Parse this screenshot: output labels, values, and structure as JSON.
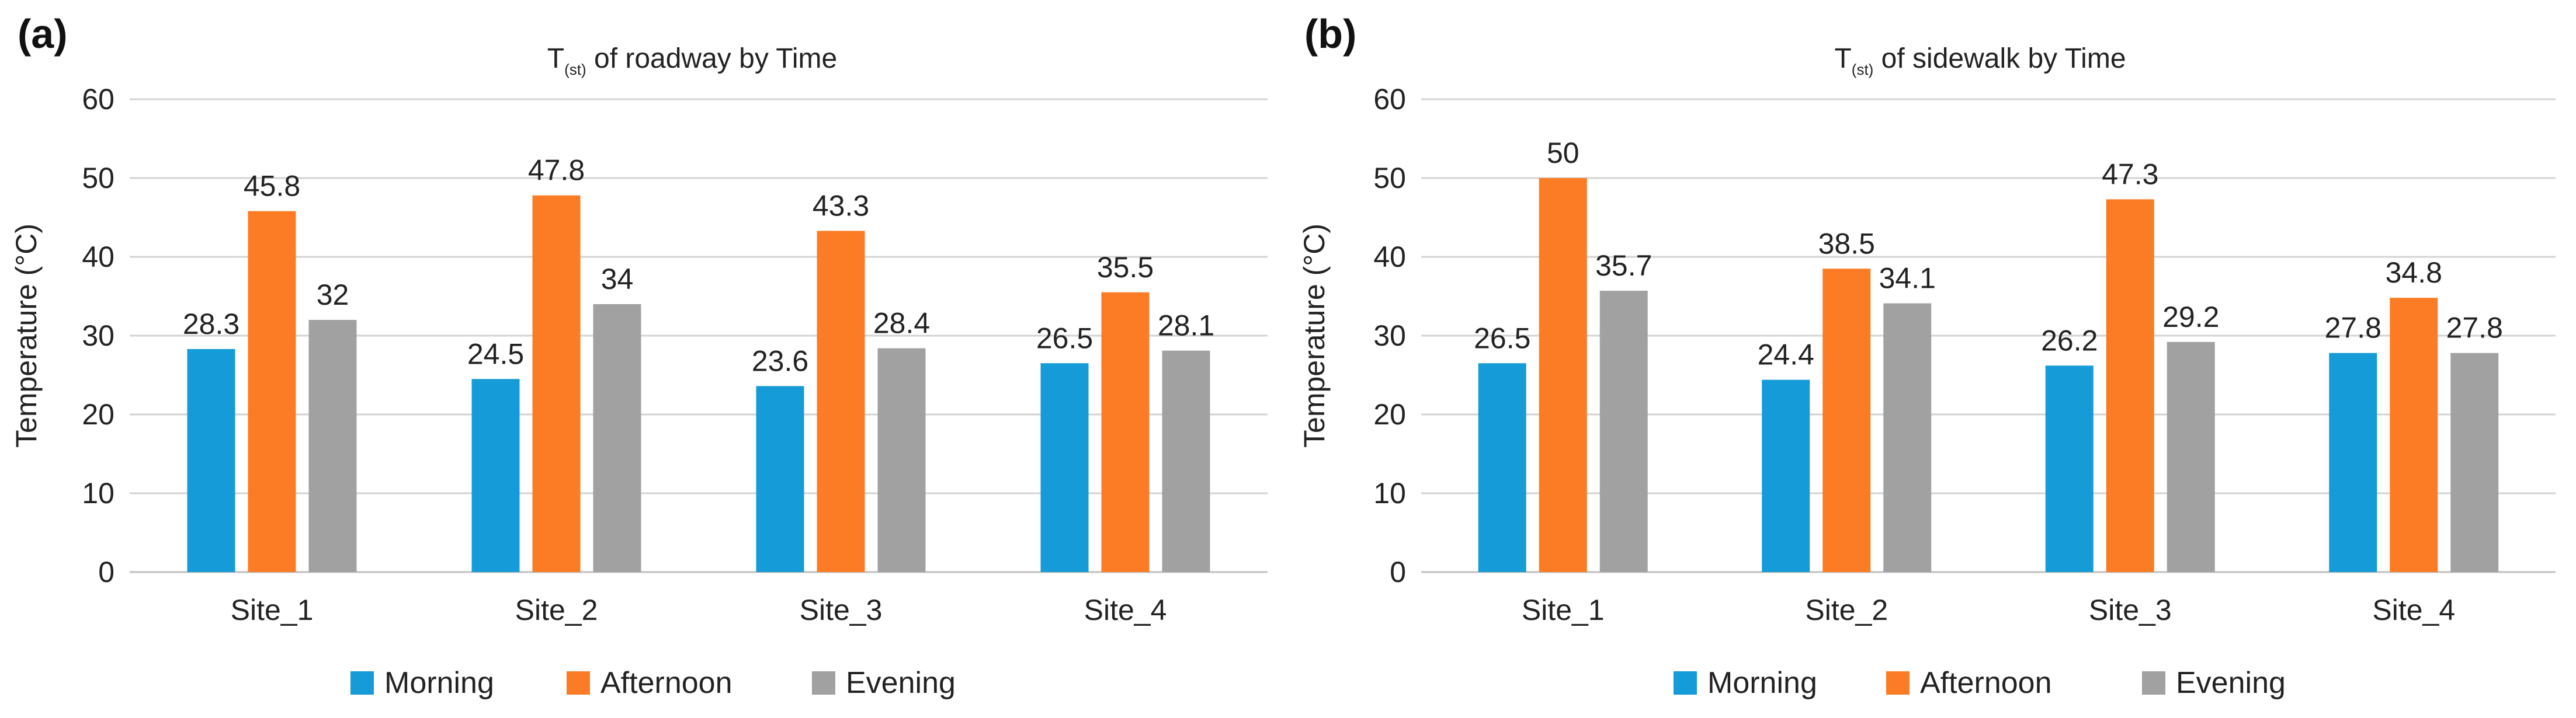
{
  "panels": [
    {
      "label": "(a)",
      "title_main": "T",
      "title_sub": "(st)",
      "title_rest": " of roadway by Time",
      "ylabel": "Temperature (°C)",
      "legend": [
        "Morning",
        "Afternoon",
        "Evening"
      ]
    },
    {
      "label": "(b)",
      "title_main": "T",
      "title_sub": "(st)",
      "title_rest": " of sidewalk by Time",
      "ylabel": "Temperature (°C)",
      "legend": [
        "Morning",
        "Afternoon",
        "Evening"
      ]
    }
  ],
  "colors": {
    "Morning": "#159bd7",
    "Afternoon": "#fb7c24",
    "Evening": "#a1a1a1",
    "grid": "#d3d3d3",
    "axis": "#bfbfbf",
    "text": "#222222"
  },
  "chart_data": [
    {
      "type": "bar",
      "title": "T(st) of roadway by Time",
      "xlabel": "",
      "ylabel": "Temperature (°C)",
      "ylim": [
        0,
        60
      ],
      "yticks": [
        0,
        10,
        20,
        30,
        40,
        50,
        60
      ],
      "grid": true,
      "legend_position": "bottom",
      "categories": [
        "Site_1",
        "Site_2",
        "Site_3",
        "Site_4"
      ],
      "series": [
        {
          "name": "Morning",
          "values": [
            28.3,
            24.5,
            23.6,
            26.5
          ]
        },
        {
          "name": "Afternoon",
          "values": [
            45.8,
            47.8,
            43.3,
            35.5
          ]
        },
        {
          "name": "Evening",
          "values": [
            32,
            34,
            28.4,
            28.1
          ]
        }
      ]
    },
    {
      "type": "bar",
      "title": "T(st) of sidewalk by Time",
      "xlabel": "",
      "ylabel": "Temperature (°C)",
      "ylim": [
        0,
        60
      ],
      "yticks": [
        0,
        10,
        20,
        30,
        40,
        50,
        60
      ],
      "grid": true,
      "legend_position": "bottom",
      "categories": [
        "Site_1",
        "Site_2",
        "Site_3",
        "Site_4"
      ],
      "series": [
        {
          "name": "Morning",
          "values": [
            26.5,
            24.4,
            26.2,
            27.8
          ]
        },
        {
          "name": "Afternoon",
          "values": [
            50,
            38.5,
            47.3,
            34.8
          ]
        },
        {
          "name": "Evening",
          "values": [
            35.7,
            34.1,
            29.2,
            27.8
          ]
        }
      ]
    }
  ]
}
